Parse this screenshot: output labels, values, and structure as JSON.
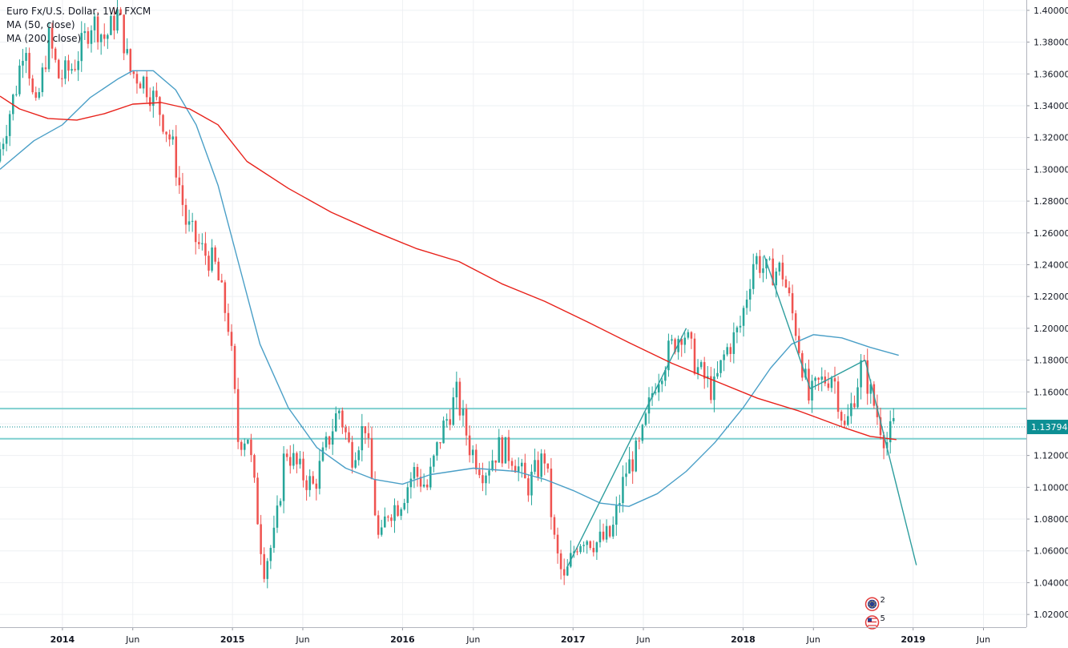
{
  "chart_data": {
    "type": "candlestick",
    "title": "Euro Fx/U.S. Dollar, 1W, FXCM",
    "symbol": "Euro Fx/U.S. Dollar",
    "interval": "1W",
    "source": "FXCM",
    "indicators": [
      {
        "name": "MA (50, close)",
        "color": "#4a9fc7"
      },
      {
        "name": "MA (200, close)",
        "color": "#e8211a"
      }
    ],
    "x_axis": {
      "start": "2013-08-20",
      "end": "2019-09-01",
      "ticks": [
        {
          "label": "2014",
          "date": "2014-01-01"
        },
        {
          "label": "Jun",
          "date": "2014-06-01"
        },
        {
          "label": "2015",
          "date": "2015-01-01"
        },
        {
          "label": "Jun",
          "date": "2015-06-01"
        },
        {
          "label": "2016",
          "date": "2016-01-01"
        },
        {
          "label": "Jun",
          "date": "2016-06-01"
        },
        {
          "label": "2017",
          "date": "2017-01-01"
        },
        {
          "label": "Jun",
          "date": "2017-06-01"
        },
        {
          "label": "2018",
          "date": "2018-01-01"
        },
        {
          "label": "Jun",
          "date": "2018-06-01"
        },
        {
          "label": "2019",
          "date": "2019-01-01"
        },
        {
          "label": "Jun",
          "date": "2019-06-01"
        }
      ]
    },
    "y_axis": {
      "min": 1.012,
      "max": 1.4065,
      "ticks": [
        "1.02000",
        "1.04000",
        "1.06000",
        "1.08000",
        "1.10000",
        "1.12000",
        "1.14000",
        "1.16000",
        "1.18000",
        "1.20000",
        "1.22000",
        "1.24000",
        "1.26000",
        "1.28000",
        "1.30000",
        "1.32000",
        "1.34000",
        "1.36000",
        "1.38000",
        "1.40000"
      ]
    },
    "last_price": {
      "label": "1.13794",
      "value": 1.13794,
      "color": "#0d8f94"
    },
    "price_path": [
      [
        "2013-08-20",
        1.305
      ],
      [
        "2013-10-01",
        1.352
      ],
      [
        "2013-10-20",
        1.385
      ],
      [
        "2013-11-10",
        1.333
      ],
      [
        "2013-12-10",
        1.382
      ],
      [
        "2014-01-01",
        1.357
      ],
      [
        "2014-02-01",
        1.365
      ],
      [
        "2014-03-13",
        1.394
      ],
      [
        "2014-04-10",
        1.382
      ],
      [
        "2014-05-08",
        1.399
      ],
      [
        "2014-06-01",
        1.362
      ],
      [
        "2014-07-01",
        1.356
      ],
      [
        "2014-08-01",
        1.34
      ],
      [
        "2014-09-01",
        1.315
      ],
      [
        "2014-10-01",
        1.265
      ],
      [
        "2014-11-01",
        1.25
      ],
      [
        "2014-12-01",
        1.24
      ],
      [
        "2015-01-01",
        1.2
      ],
      [
        "2015-01-20",
        1.13
      ],
      [
        "2015-02-10",
        1.133
      ],
      [
        "2015-03-16",
        1.05
      ],
      [
        "2015-04-10",
        1.07
      ],
      [
        "2015-05-01",
        1.125
      ],
      [
        "2015-06-01",
        1.11
      ],
      [
        "2015-07-01",
        1.1
      ],
      [
        "2015-08-24",
        1.15
      ],
      [
        "2015-09-20",
        1.12
      ],
      [
        "2015-10-20",
        1.14
      ],
      [
        "2015-11-20",
        1.06
      ],
      [
        "2015-12-05",
        1.085
      ],
      [
        "2016-01-01",
        1.09
      ],
      [
        "2016-02-01",
        1.11
      ],
      [
        "2016-03-01",
        1.1
      ],
      [
        "2016-04-01",
        1.135
      ],
      [
        "2016-05-03",
        1.158
      ],
      [
        "2016-06-01",
        1.125
      ],
      [
        "2016-07-01",
        1.11
      ],
      [
        "2016-08-01",
        1.125
      ],
      [
        "2016-09-01",
        1.12
      ],
      [
        "2016-10-01",
        1.1
      ],
      [
        "2016-11-09",
        1.12
      ],
      [
        "2016-12-01",
        1.06
      ],
      [
        "2016-12-20",
        1.04
      ],
      [
        "2017-01-15",
        1.065
      ],
      [
        "2017-02-01",
        1.07
      ],
      [
        "2017-03-01",
        1.065
      ],
      [
        "2017-04-01",
        1.07
      ],
      [
        "2017-05-01",
        1.11
      ],
      [
        "2017-06-01",
        1.125
      ],
      [
        "2017-07-01",
        1.165
      ],
      [
        "2017-08-01",
        1.185
      ],
      [
        "2017-09-01",
        1.2
      ],
      [
        "2017-10-01",
        1.175
      ],
      [
        "2017-11-05",
        1.16
      ],
      [
        "2017-12-01",
        1.185
      ],
      [
        "2018-01-01",
        1.2
      ],
      [
        "2018-02-01",
        1.245
      ],
      [
        "2018-03-01",
        1.235
      ],
      [
        "2018-04-01",
        1.237
      ],
      [
        "2018-05-01",
        1.2
      ],
      [
        "2018-05-29",
        1.155
      ],
      [
        "2018-06-20",
        1.165
      ],
      [
        "2018-07-20",
        1.172
      ],
      [
        "2018-08-15",
        1.135
      ],
      [
        "2018-09-20",
        1.178
      ],
      [
        "2018-10-20",
        1.148
      ],
      [
        "2018-11-12",
        1.128
      ],
      [
        "2018-11-26",
        1.138
      ]
    ],
    "ma50_path": [
      [
        "2013-08-20",
        1.3
      ],
      [
        "2013-11-01",
        1.318
      ],
      [
        "2014-01-01",
        1.328
      ],
      [
        "2014-03-01",
        1.345
      ],
      [
        "2014-05-01",
        1.357
      ],
      [
        "2014-06-01",
        1.362
      ],
      [
        "2014-07-15",
        1.362
      ],
      [
        "2014-09-01",
        1.35
      ],
      [
        "2014-10-15",
        1.328
      ],
      [
        "2014-12-01",
        1.29
      ],
      [
        "2015-01-15",
        1.24
      ],
      [
        "2015-03-01",
        1.19
      ],
      [
        "2015-05-01",
        1.15
      ],
      [
        "2015-07-01",
        1.125
      ],
      [
        "2015-09-01",
        1.112
      ],
      [
        "2015-11-01",
        1.105
      ],
      [
        "2016-01-01",
        1.102
      ],
      [
        "2016-03-01",
        1.108
      ],
      [
        "2016-06-01",
        1.112
      ],
      [
        "2016-09-01",
        1.11
      ],
      [
        "2016-11-01",
        1.105
      ],
      [
        "2017-01-01",
        1.098
      ],
      [
        "2017-03-01",
        1.09
      ],
      [
        "2017-05-01",
        1.088
      ],
      [
        "2017-07-01",
        1.096
      ],
      [
        "2017-09-01",
        1.11
      ],
      [
        "2017-11-01",
        1.128
      ],
      [
        "2018-01-01",
        1.15
      ],
      [
        "2018-03-01",
        1.175
      ],
      [
        "2018-04-15",
        1.19
      ],
      [
        "2018-06-01",
        1.196
      ],
      [
        "2018-08-01",
        1.194
      ],
      [
        "2018-10-01",
        1.188
      ],
      [
        "2018-12-01",
        1.183
      ]
    ],
    "ma200_path": [
      [
        "2013-08-20",
        1.346
      ],
      [
        "2013-10-01",
        1.338
      ],
      [
        "2013-12-01",
        1.332
      ],
      [
        "2014-02-01",
        1.331
      ],
      [
        "2014-04-01",
        1.335
      ],
      [
        "2014-06-01",
        1.341
      ],
      [
        "2014-08-01",
        1.342
      ],
      [
        "2014-10-01",
        1.338
      ],
      [
        "2014-12-01",
        1.328
      ],
      [
        "2015-02-01",
        1.305
      ],
      [
        "2015-05-01",
        1.288
      ],
      [
        "2015-08-01",
        1.273
      ],
      [
        "2015-11-01",
        1.261
      ],
      [
        "2016-02-01",
        1.25
      ],
      [
        "2016-05-01",
        1.242
      ],
      [
        "2016-08-01",
        1.228
      ],
      [
        "2016-11-01",
        1.217
      ],
      [
        "2017-02-01",
        1.204
      ],
      [
        "2017-05-01",
        1.191
      ],
      [
        "2017-08-01",
        1.178
      ],
      [
        "2017-11-01",
        1.167
      ],
      [
        "2018-02-01",
        1.156
      ],
      [
        "2018-05-01",
        1.148
      ],
      [
        "2018-08-01",
        1.138
      ],
      [
        "2018-10-01",
        1.132
      ],
      [
        "2018-11-26",
        1.13
      ]
    ],
    "trendlines": [
      {
        "from": [
          "2016-12-20",
          1.05
        ],
        "to": [
          "2017-09-01",
          1.2
        ],
        "color": "#2e9e9e"
      },
      {
        "from": [
          "2018-02-15",
          1.246
        ],
        "to": [
          "2018-05-25",
          1.162
        ],
        "color": "#2e9e9e"
      },
      {
        "from": [
          "2018-05-25",
          1.162
        ],
        "to": [
          "2018-09-20",
          1.18
        ],
        "color": "#2e9e9e"
      },
      {
        "from": [
          "2018-09-20",
          1.18
        ],
        "to": [
          "2019-01-08",
          1.051
        ],
        "color": "#2e9e9e"
      }
    ],
    "horizontal_lines": [
      {
        "value": 1.1495,
        "color": "#7ecfcf"
      },
      {
        "value": 1.1305,
        "color": "#7ecfcf"
      }
    ],
    "colors": {
      "up": "#26a69a",
      "down": "#ef5350",
      "grid": "#eef0f3",
      "axis_text": "#131722"
    },
    "events": [
      {
        "date": "2018-10-05",
        "value": 1.0265,
        "icon": "flag-eu-icon",
        "count": "2"
      },
      {
        "date": "2018-10-05",
        "value": 1.015,
        "icon": "flag-us-icon",
        "count": "5"
      }
    ]
  }
}
